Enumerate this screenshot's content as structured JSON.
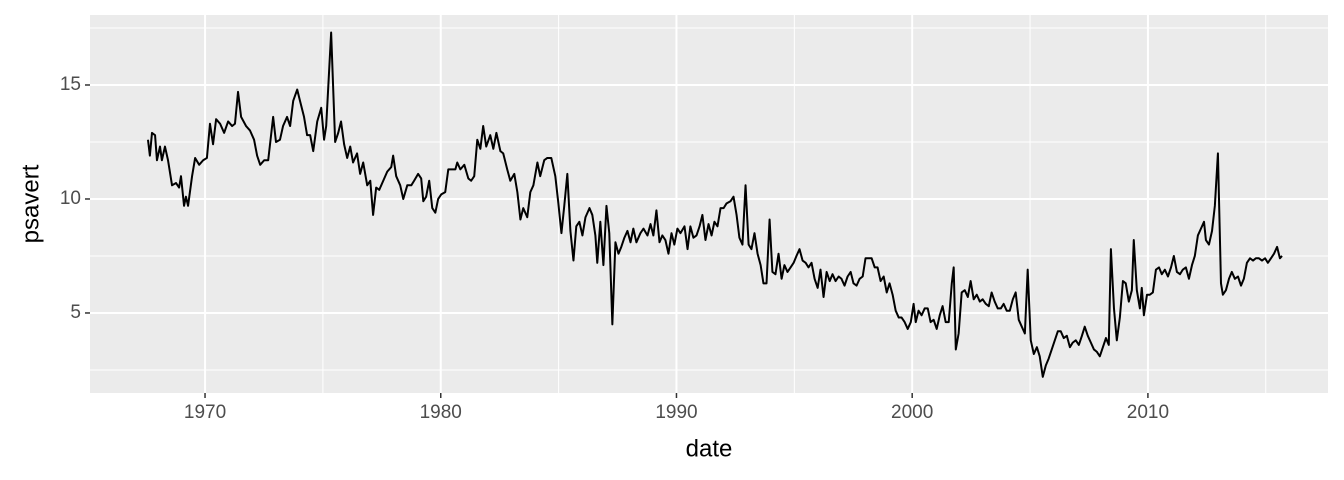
{
  "chart_data": {
    "type": "line",
    "x_label": "date",
    "y_label": "psavert",
    "color": "#000000",
    "grid": true,
    "xlim": [
      1965.12,
      2017.64
    ],
    "ylim": [
      1.49,
      18.07
    ],
    "xticks": [
      1970,
      1980,
      1990,
      2000,
      2010
    ],
    "yticks": [
      5,
      10,
      15
    ],
    "xminor": [
      1965,
      1975,
      1985,
      1995,
      2005,
      2015
    ],
    "yminor": [
      2.5,
      7.5,
      12.5,
      17.5
    ],
    "x": [
      1967.58,
      1967.66,
      1967.75,
      1967.88,
      1967.96,
      1968.09,
      1968.17,
      1968.3,
      1968.43,
      1968.6,
      1968.77,
      1968.9,
      1968.98,
      1969.11,
      1969.19,
      1969.28,
      1969.45,
      1969.58,
      1969.75,
      1969.92,
      1970.08,
      1970.21,
      1970.34,
      1970.47,
      1970.64,
      1970.81,
      1970.98,
      1971.15,
      1971.27,
      1971.4,
      1971.53,
      1971.74,
      1971.91,
      1972.08,
      1972.21,
      1972.34,
      1972.51,
      1972.68,
      1972.89,
      1973.01,
      1973.18,
      1973.31,
      1973.48,
      1973.61,
      1973.74,
      1973.91,
      1974.03,
      1974.2,
      1974.33,
      1974.46,
      1974.59,
      1974.76,
      1974.93,
      1975.05,
      1975.14,
      1975.35,
      1975.52,
      1975.65,
      1975.77,
      1975.9,
      1976.03,
      1976.16,
      1976.28,
      1976.45,
      1976.58,
      1976.71,
      1976.88,
      1977.01,
      1977.13,
      1977.26,
      1977.39,
      1977.56,
      1977.73,
      1977.9,
      1977.98,
      1978.11,
      1978.28,
      1978.41,
      1978.58,
      1978.75,
      1978.87,
      1979.04,
      1979.17,
      1979.26,
      1979.38,
      1979.51,
      1979.64,
      1979.77,
      1979.89,
      1980.02,
      1980.19,
      1980.32,
      1980.45,
      1980.62,
      1980.7,
      1980.83,
      1981.0,
      1981.17,
      1981.29,
      1981.42,
      1981.55,
      1981.68,
      1981.8,
      1981.93,
      1982.1,
      1982.23,
      1982.36,
      1982.53,
      1982.65,
      1982.82,
      1982.95,
      1983.12,
      1983.25,
      1983.38,
      1983.5,
      1983.67,
      1983.8,
      1983.93,
      1984.1,
      1984.22,
      1984.39,
      1984.52,
      1984.69,
      1984.86,
      1984.99,
      1985.12,
      1985.24,
      1985.37,
      1985.5,
      1985.63,
      1985.75,
      1985.88,
      1986.01,
      1986.14,
      1986.31,
      1986.43,
      1986.56,
      1986.64,
      1986.77,
      1986.9,
      1987.03,
      1987.15,
      1987.28,
      1987.41,
      1987.54,
      1987.66,
      1987.79,
      1987.92,
      1988.05,
      1988.17,
      1988.3,
      1988.47,
      1988.6,
      1988.77,
      1988.9,
      1989.02,
      1989.15,
      1989.28,
      1989.4,
      1989.53,
      1989.66,
      1989.79,
      1989.91,
      1990.04,
      1990.17,
      1990.34,
      1990.47,
      1990.59,
      1990.72,
      1990.85,
      1990.98,
      1991.1,
      1991.23,
      1991.36,
      1991.49,
      1991.61,
      1991.74,
      1991.87,
      1992.0,
      1992.12,
      1992.29,
      1992.42,
      1992.55,
      1992.67,
      1992.8,
      1992.93,
      1993.06,
      1993.18,
      1993.31,
      1993.44,
      1993.57,
      1993.69,
      1993.82,
      1993.95,
      1994.07,
      1994.2,
      1994.33,
      1994.46,
      1994.58,
      1994.71,
      1994.84,
      1994.97,
      1995.09,
      1995.22,
      1995.35,
      1995.48,
      1995.6,
      1995.73,
      1995.86,
      1995.99,
      1996.11,
      1996.24,
      1996.37,
      1996.5,
      1996.62,
      1996.75,
      1996.88,
      1997.0,
      1997.13,
      1997.26,
      1997.39,
      1997.51,
      1997.64,
      1997.77,
      1997.9,
      1998.02,
      1998.15,
      1998.28,
      1998.41,
      1998.53,
      1998.66,
      1998.79,
      1998.92,
      1999.04,
      1999.17,
      1999.3,
      1999.43,
      1999.55,
      1999.68,
      1999.81,
      1999.94,
      2000.06,
      2000.15,
      2000.27,
      2000.4,
      2000.53,
      2000.66,
      2000.78,
      2000.91,
      2001.04,
      2001.17,
      2001.29,
      2001.42,
      2001.55,
      2001.68,
      2001.76,
      2001.85,
      2001.97,
      2002.1,
      2002.23,
      2002.36,
      2002.48,
      2002.61,
      2002.74,
      2002.87,
      2002.99,
      2003.12,
      2003.25,
      2003.37,
      2003.5,
      2003.63,
      2003.76,
      2003.88,
      2004.01,
      2004.14,
      2004.27,
      2004.39,
      2004.52,
      2004.65,
      2004.78,
      2004.9,
      2005.03,
      2005.16,
      2005.29,
      2005.41,
      2005.54,
      2005.67,
      2005.79,
      2005.92,
      2006.05,
      2006.18,
      2006.3,
      2006.43,
      2006.56,
      2006.69,
      2006.81,
      2006.94,
      2007.07,
      2007.2,
      2007.32,
      2007.45,
      2007.58,
      2007.71,
      2007.83,
      2007.96,
      2008.09,
      2008.22,
      2008.34,
      2008.43,
      2008.56,
      2008.68,
      2008.81,
      2008.94,
      2009.06,
      2009.19,
      2009.32,
      2009.4,
      2009.53,
      2009.66,
      2009.74,
      2009.83,
      2009.96,
      2010.08,
      2010.21,
      2010.34,
      2010.47,
      2010.59,
      2010.72,
      2010.85,
      2010.98,
      2011.1,
      2011.23,
      2011.36,
      2011.48,
      2011.61,
      2011.74,
      2011.87,
      2011.99,
      2012.12,
      2012.25,
      2012.38,
      2012.46,
      2012.59,
      2012.72,
      2012.84,
      2012.97,
      2013.1,
      2013.18,
      2013.31,
      2013.44,
      2013.56,
      2013.69,
      2013.82,
      2013.95,
      2014.07,
      2014.2,
      2014.33,
      2014.46,
      2014.58,
      2014.71,
      2014.84,
      2014.97,
      2015.09,
      2015.22,
      2015.35,
      2015.48,
      2015.6,
      2015.69
    ],
    "values": [
      12.6,
      11.9,
      12.9,
      12.8,
      11.7,
      12.3,
      11.7,
      12.3,
      11.7,
      10.6,
      10.7,
      10.5,
      11.0,
      9.7,
      10.1,
      9.7,
      11.0,
      11.8,
      11.5,
      11.7,
      11.8,
      13.3,
      12.4,
      13.5,
      13.3,
      12.9,
      13.4,
      13.2,
      13.3,
      14.7,
      13.6,
      13.2,
      13.0,
      12.6,
      11.9,
      11.5,
      11.7,
      11.7,
      13.6,
      12.5,
      12.6,
      13.2,
      13.6,
      13.2,
      14.3,
      14.8,
      14.3,
      13.6,
      12.8,
      12.8,
      12.1,
      13.4,
      14.0,
      12.6,
      13.2,
      17.3,
      12.5,
      12.9,
      13.4,
      12.4,
      11.8,
      12.3,
      11.6,
      12.0,
      11.1,
      11.6,
      10.6,
      10.8,
      9.3,
      10.5,
      10.4,
      10.8,
      11.2,
      11.4,
      11.9,
      11.0,
      10.6,
      10.0,
      10.6,
      10.6,
      10.8,
      11.1,
      10.9,
      9.9,
      10.1,
      10.8,
      9.6,
      9.4,
      10.0,
      10.2,
      10.3,
      11.3,
      11.3,
      11.3,
      11.6,
      11.3,
      11.5,
      10.9,
      10.8,
      11.0,
      12.6,
      12.2,
      13.2,
      12.3,
      12.8,
      12.2,
      12.9,
      12.1,
      12.0,
      11.3,
      10.8,
      11.1,
      10.3,
      9.1,
      9.6,
      9.2,
      10.3,
      10.6,
      11.6,
      11.0,
      11.7,
      11.8,
      11.8,
      11.0,
      9.8,
      8.5,
      9.7,
      11.1,
      8.6,
      7.3,
      8.8,
      9.0,
      8.4,
      9.2,
      9.6,
      9.3,
      8.4,
      7.2,
      9.0,
      7.1,
      9.7,
      8.5,
      4.5,
      8.1,
      7.6,
      7.9,
      8.3,
      8.6,
      8.1,
      8.7,
      8.1,
      8.5,
      8.7,
      8.4,
      8.9,
      8.4,
      9.5,
      8.1,
      8.4,
      8.2,
      7.6,
      8.5,
      8.0,
      8.7,
      8.5,
      8.8,
      7.8,
      8.8,
      8.3,
      8.4,
      8.8,
      9.3,
      8.2,
      8.9,
      8.4,
      9.0,
      8.8,
      9.6,
      9.6,
      9.8,
      9.9,
      10.1,
      9.3,
      8.3,
      8.0,
      10.6,
      8.0,
      7.8,
      8.5,
      7.6,
      7.1,
      6.3,
      6.3,
      9.1,
      6.8,
      6.7,
      7.6,
      6.5,
      7.1,
      6.8,
      7.0,
      7.2,
      7.5,
      7.8,
      7.3,
      7.2,
      7.0,
      7.2,
      6.5,
      6.1,
      6.9,
      5.7,
      6.8,
      6.4,
      6.7,
      6.4,
      6.6,
      6.5,
      6.2,
      6.6,
      6.8,
      6.3,
      6.2,
      6.5,
      6.6,
      7.4,
      7.4,
      7.4,
      7.0,
      7.0,
      6.4,
      6.6,
      5.9,
      6.3,
      5.8,
      5.1,
      4.8,
      4.8,
      4.6,
      4.3,
      4.6,
      5.4,
      4.6,
      5.1,
      4.9,
      5.2,
      5.2,
      4.6,
      4.7,
      4.3,
      4.9,
      5.3,
      4.6,
      4.6,
      6.3,
      7.0,
      3.4,
      4.1,
      5.9,
      6.0,
      5.7,
      6.4,
      5.6,
      5.8,
      5.5,
      5.6,
      5.4,
      5.3,
      5.9,
      5.5,
      5.2,
      5.2,
      5.4,
      5.1,
      5.1,
      5.6,
      5.9,
      4.7,
      4.4,
      4.1,
      6.9,
      3.8,
      3.2,
      3.5,
      3.1,
      2.2,
      2.7,
      3.0,
      3.4,
      3.8,
      4.2,
      4.2,
      3.9,
      4.0,
      3.5,
      3.7,
      3.8,
      3.6,
      4.0,
      4.4,
      4.0,
      3.7,
      3.4,
      3.3,
      3.1,
      3.5,
      3.9,
      3.6,
      7.8,
      5.2,
      3.8,
      4.8,
      6.4,
      6.3,
      5.5,
      6.0,
      8.2,
      6.0,
      5.2,
      6.1,
      4.9,
      5.8,
      5.8,
      5.9,
      6.9,
      7.0,
      6.7,
      6.9,
      6.6,
      7.0,
      7.5,
      6.8,
      6.7,
      6.9,
      7.0,
      6.5,
      7.1,
      7.5,
      8.4,
      8.7,
      9.0,
      8.2,
      8.0,
      8.6,
      9.7,
      12.0,
      6.3,
      5.8,
      6.0,
      6.5,
      6.8,
      6.5,
      6.6,
      6.2,
      6.5,
      7.2,
      7.4,
      7.3,
      7.4,
      7.4,
      7.3,
      7.4,
      7.2,
      7.4,
      7.6,
      7.9,
      7.4,
      7.5
    ]
  }
}
